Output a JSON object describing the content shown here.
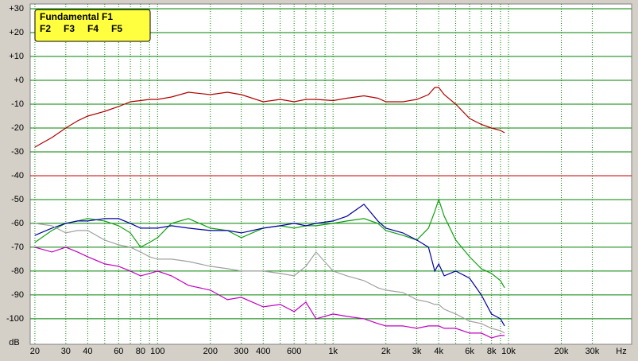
{
  "chart_data": {
    "type": "line",
    "x_label": "Hz",
    "y_label": "dB",
    "log_x": true,
    "grid": true,
    "grid_color": "#008000",
    "reference_line": -40,
    "reference_color": "#c00000",
    "legend": "upper left",
    "legend_color": "#ffff40",
    "xlim": [
      18.8,
      50300
    ],
    "ylim": [
      -110.7,
      32
    ],
    "xticks": [
      20,
      30,
      40,
      60,
      80,
      100,
      200,
      300,
      400,
      600,
      {
        "value": 1000,
        "label": "1k"
      },
      {
        "value": 2000,
        "label": "2k"
      },
      {
        "value": 3000,
        "label": "3k"
      },
      {
        "value": 4000,
        "label": "4k"
      },
      {
        "value": 6000,
        "label": "6k"
      },
      {
        "value": 8000,
        "label": "8k"
      },
      {
        "value": 10000,
        "label": "10k"
      },
      {
        "value": 20000,
        "label": "20k"
      },
      {
        "value": 30000,
        "label": "30k"
      }
    ],
    "xminor": [
      50,
      70,
      90,
      500,
      700,
      800,
      900,
      5000,
      7000,
      9000
    ],
    "yticks": [
      {
        "value": 30,
        "label": "+30"
      },
      {
        "value": 20,
        "label": "+20"
      },
      {
        "value": 10,
        "label": "+10"
      },
      {
        "value": 0,
        "label": "+0"
      },
      -10,
      -20,
      -30,
      -40,
      -50,
      -60,
      -70,
      -80,
      -90,
      -100
    ],
    "x": [
      20,
      25,
      30,
      35,
      40,
      50,
      60,
      70,
      80,
      90,
      100,
      120,
      150,
      200,
      250,
      300,
      400,
      500,
      600,
      700,
      800,
      1000,
      1200,
      1500,
      1800,
      2000,
      2500,
      3000,
      3500,
      3800,
      4000,
      4300,
      5000,
      6000,
      7000,
      8000,
      9000,
      9500
    ],
    "series": [
      {
        "name": "Fundamental F1",
        "color": "#b00000",
        "values": [
          -28,
          -24,
          -20,
          -17,
          -15,
          -13,
          -11,
          -9,
          -8.5,
          -8,
          -8,
          -7,
          -5,
          -6,
          -5,
          -6,
          -9,
          -8,
          -9,
          -8,
          -8,
          -8.5,
          -7.5,
          -6.5,
          -7.5,
          -9,
          -9,
          -8,
          -6,
          -3,
          -3,
          -6,
          -10,
          -16,
          -18.5,
          -20,
          -21,
          -22
        ]
      },
      {
        "name": "F2",
        "color": "#10a010",
        "values": [
          -68,
          -63,
          -60,
          -59,
          -58,
          -59,
          -61,
          -64,
          -70,
          -68,
          -66,
          -60,
          -58,
          -62,
          -63,
          -66,
          -62,
          -61,
          -62,
          -61,
          -61,
          -60,
          -59,
          -58,
          -60,
          -63,
          -65,
          -67,
          -62,
          -55,
          -50,
          -57,
          -67,
          -74,
          -79,
          -81,
          -84,
          -87
        ]
      },
      {
        "name": "F3",
        "color": "#0000a0",
        "values": [
          -65,
          -62,
          -60,
          -59,
          -59,
          -58,
          -58,
          -60,
          -62,
          -62,
          -62,
          -61,
          -62,
          -63,
          -63,
          -64,
          -62,
          -61,
          -60,
          -61,
          -60,
          -59,
          -57,
          -52,
          -59,
          -62,
          -64,
          -67,
          -70,
          -80,
          -77,
          -82,
          -80,
          -83,
          -90,
          -98,
          -100,
          -103
        ]
      },
      {
        "name": "F4",
        "color": "#c000c0",
        "values": [
          -70,
          -72,
          -70,
          -72,
          -74,
          -77,
          -78,
          -80,
          -82,
          -81,
          -80,
          -82,
          -86,
          -88,
          -92,
          -91,
          -95,
          -94,
          -97,
          -93,
          -100,
          -98,
          -99,
          -100,
          -102,
          -103,
          -103,
          -104,
          -103,
          -103,
          -103,
          -104,
          -104,
          -106,
          -106,
          -108,
          -107,
          -107
        ]
      },
      {
        "name": "F5",
        "color": "#a0a0a0",
        "values": [
          -60,
          -61,
          -64,
          -63,
          -63,
          -67,
          -69,
          -70,
          -72,
          -74,
          -75,
          -75,
          -76,
          -78,
          -79,
          -80,
          -80,
          -81,
          -82,
          -78,
          -72,
          -80,
          -82,
          -84,
          -87,
          -88,
          -89,
          -92,
          -93,
          -94,
          -94,
          -96,
          -98,
          -101,
          -102,
          -104,
          -105,
          -106
        ]
      }
    ]
  }
}
